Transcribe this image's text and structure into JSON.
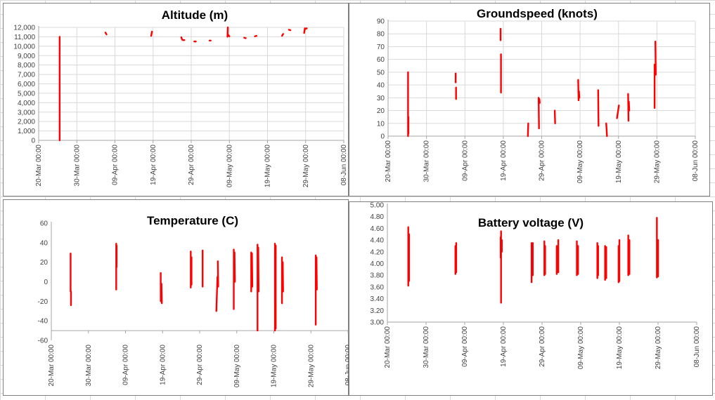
{
  "x_ticks": [
    "20-Mar 00:00",
    "30-Mar 00:00",
    "09-Apr 00:00",
    "19-Apr 00:00",
    "29-Apr 00:00",
    "09-May 00:00",
    "19-May 00:00",
    "29-May 00:00",
    "08-Jun 00:00"
  ],
  "series_color": "#ff0000",
  "chart_data": [
    {
      "type": "line",
      "title": "Altitude (m)",
      "x_unit": "days since 20-Mar",
      "ylim": [
        0,
        12000
      ],
      "y_ticks": [
        "0",
        "1,000",
        "2,000",
        "3,000",
        "4,000",
        "5,000",
        "6,000",
        "7,000",
        "8,000",
        "9,000",
        "10,000",
        "11,000",
        "12,000"
      ],
      "grid": true,
      "segments": [
        [
          5.5,
          0,
          5.5,
          11000
        ],
        [
          17.5,
          11450,
          17.8,
          11250
        ],
        [
          29.5,
          11100,
          29.7,
          11550
        ],
        [
          37.4,
          10950,
          37.6,
          10700
        ],
        [
          37.8,
          10650,
          38.2,
          10650
        ],
        [
          40.8,
          10500,
          41.2,
          10500
        ],
        [
          44.8,
          10600,
          45.1,
          10600
        ],
        [
          49.5,
          11000,
          49.6,
          12000
        ],
        [
          49.7,
          11200,
          50.0,
          11050
        ],
        [
          53.9,
          10900,
          54.3,
          10850
        ],
        [
          56.7,
          11050,
          57.1,
          11100
        ],
        [
          63.8,
          11100,
          64.1,
          11300
        ],
        [
          65.6,
          11750,
          66.0,
          11700
        ],
        [
          69.6,
          11400,
          69.8,
          11900
        ],
        [
          70.0,
          11850,
          70.3,
          11900
        ]
      ]
    },
    {
      "type": "line",
      "title": "Groundspeed (knots)",
      "x_unit": "days since 20-Mar",
      "ylim": [
        0,
        90
      ],
      "y_ticks": [
        "0",
        "10",
        "20",
        "30",
        "40",
        "50",
        "60",
        "70",
        "80",
        "90"
      ],
      "grid": true,
      "segments": [
        [
          5.2,
          0,
          5.2,
          50
        ],
        [
          5.3,
          2,
          5.3,
          15
        ],
        [
          17.6,
          49,
          17.6,
          42
        ],
        [
          17.7,
          38,
          17.7,
          29
        ],
        [
          29.3,
          84,
          29.3,
          75
        ],
        [
          29.4,
          64,
          29.4,
          34
        ],
        [
          36.4,
          0,
          36.5,
          10
        ],
        [
          39.2,
          30,
          39.3,
          6
        ],
        [
          39.4,
          29,
          39.5,
          26
        ],
        [
          43.4,
          20,
          43.5,
          10
        ],
        [
          49.5,
          44,
          49.6,
          28
        ],
        [
          49.7,
          35,
          49.8,
          30
        ],
        [
          54.7,
          36,
          54.8,
          8
        ],
        [
          56.8,
          10,
          57.0,
          0
        ],
        [
          59.6,
          14,
          60.1,
          24
        ],
        [
          62.5,
          33,
          62.6,
          12
        ],
        [
          62.7,
          27,
          62.8,
          20
        ],
        [
          69.4,
          56,
          69.4,
          22
        ],
        [
          69.6,
          74,
          69.7,
          48
        ]
      ]
    },
    {
      "type": "line",
      "title": "Temperature (C)",
      "x_unit": "days since 20-Mar",
      "ylim": [
        -60,
        60
      ],
      "y_ticks": [
        "-60",
        "-40",
        "-20",
        "0",
        "20",
        "40",
        "60"
      ],
      "grid": false,
      "segments": [
        [
          5.2,
          29,
          5.2,
          -10
        ],
        [
          5.3,
          -10,
          5.3,
          -24
        ],
        [
          17.5,
          39,
          17.5,
          -8
        ],
        [
          17.6,
          37,
          17.6,
          15
        ],
        [
          29.5,
          9,
          29.5,
          -20
        ],
        [
          29.7,
          -2,
          29.8,
          -22
        ],
        [
          37.6,
          31,
          37.6,
          -6
        ],
        [
          37.8,
          25,
          37.8,
          -3
        ],
        [
          40.8,
          32,
          40.8,
          -5
        ],
        [
          44.5,
          -30,
          44.8,
          5
        ],
        [
          44.9,
          21,
          45.0,
          -5
        ],
        [
          49.2,
          33,
          49.2,
          -28
        ],
        [
          49.4,
          30,
          49.5,
          0
        ],
        [
          53.9,
          30,
          53.9,
          -10
        ],
        [
          54.1,
          29,
          54.2,
          -5
        ],
        [
          55.6,
          38,
          55.6,
          -50
        ],
        [
          55.8,
          35,
          55.9,
          -10
        ],
        [
          60.3,
          39,
          60.3,
          -50
        ],
        [
          60.5,
          37,
          60.5,
          -48
        ],
        [
          62.2,
          25,
          62.2,
          -22
        ],
        [
          62.4,
          20,
          62.5,
          -10
        ],
        [
          71.3,
          27,
          71.3,
          -44
        ],
        [
          71.5,
          25,
          71.6,
          -8
        ]
      ]
    },
    {
      "type": "line",
      "title": "Battery voltage (V)",
      "x_unit": "days since 20-Mar",
      "ylim": [
        3.0,
        5.0
      ],
      "y_ticks": [
        "3.00",
        "3.20",
        "3.40",
        "3.60",
        "3.80",
        "4.00",
        "4.20",
        "4.40",
        "4.60",
        "4.80",
        "5.00"
      ],
      "grid": false,
      "segments": [
        [
          5.4,
          4.62,
          5.4,
          3.62
        ],
        [
          5.6,
          4.5,
          5.6,
          3.7
        ],
        [
          17.6,
          4.3,
          17.6,
          3.82
        ],
        [
          17.8,
          4.35,
          17.8,
          3.85
        ],
        [
          29.3,
          4.45,
          29.3,
          4.1
        ],
        [
          29.4,
          4.55,
          29.4,
          3.33
        ],
        [
          29.6,
          4.4,
          29.6,
          4.2
        ],
        [
          37.3,
          4.35,
          37.3,
          3.68
        ],
        [
          37.6,
          4.35,
          37.6,
          3.8
        ],
        [
          40.6,
          4.38,
          40.6,
          3.8
        ],
        [
          40.8,
          4.3,
          40.8,
          3.82
        ],
        [
          43.8,
          4.3,
          43.8,
          3.82
        ],
        [
          44.2,
          4.4,
          44.2,
          3.85
        ],
        [
          49.0,
          4.38,
          49.0,
          3.8
        ],
        [
          49.3,
          4.3,
          49.3,
          3.82
        ],
        [
          54.3,
          4.35,
          54.3,
          3.75
        ],
        [
          54.5,
          4.3,
          54.5,
          3.8
        ],
        [
          56.3,
          4.3,
          56.3,
          3.72
        ],
        [
          56.6,
          4.28,
          56.6,
          3.75
        ],
        [
          59.8,
          4.3,
          59.8,
          3.68
        ],
        [
          60.0,
          4.4,
          60.0,
          3.7
        ],
        [
          62.3,
          4.48,
          62.3,
          3.8
        ],
        [
          62.6,
          4.4,
          62.6,
          3.82
        ],
        [
          69.7,
          4.78,
          69.7,
          3.76
        ],
        [
          70.0,
          4.4,
          70.0,
          3.78
        ]
      ]
    }
  ]
}
